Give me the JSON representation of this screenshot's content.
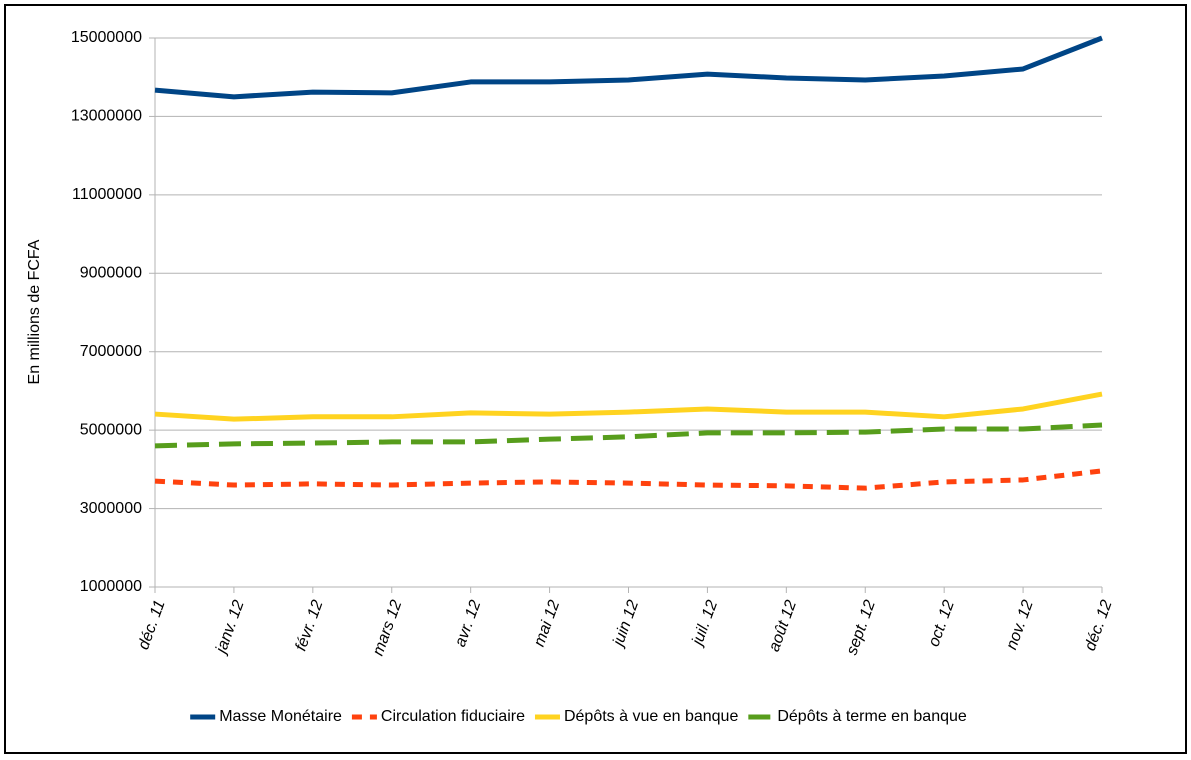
{
  "chart_data": {
    "type": "line",
    "y_label": "En millions de FCFA",
    "categories": [
      "déc. 11",
      "janv. 12",
      "févr. 12",
      "mars 12",
      "avr. 12",
      "mai 12",
      "juin 12",
      "juil. 12",
      "août 12",
      "sept. 12",
      "oct. 12",
      "nov. 12",
      "déc. 12"
    ],
    "series": [
      {
        "name": "Masse Monétaire",
        "color": "#004586",
        "dash": "solid",
        "values": [
          13670000,
          13500000,
          13620000,
          13600000,
          13880000,
          13880000,
          13930000,
          14080000,
          13980000,
          13930000,
          14030000,
          14210000,
          15000000
        ]
      },
      {
        "name": "Circulation fiduciaire",
        "color": "#ff420e",
        "dash": "dot",
        "values": [
          3700000,
          3600000,
          3630000,
          3600000,
          3650000,
          3680000,
          3650000,
          3600000,
          3580000,
          3520000,
          3680000,
          3730000,
          3960000
        ]
      },
      {
        "name": "Dépôts à vue en banque",
        "color": "#ffd320",
        "dash": "solid",
        "values": [
          5410000,
          5280000,
          5340000,
          5340000,
          5440000,
          5410000,
          5460000,
          5540000,
          5460000,
          5460000,
          5340000,
          5540000,
          5920000
        ]
      },
      {
        "name": "Dépôts à terme en banque",
        "color": "#579d1c",
        "dash": "dash",
        "values": [
          4600000,
          4650000,
          4670000,
          4700000,
          4700000,
          4770000,
          4830000,
          4930000,
          4930000,
          4950000,
          5030000,
          5030000,
          5130000
        ]
      }
    ],
    "ylim": [
      1000000,
      15000000
    ],
    "yticks": [
      1000000,
      3000000,
      5000000,
      7000000,
      9000000,
      11000000,
      13000000,
      15000000
    ],
    "grid": true,
    "legend": "bottom"
  }
}
